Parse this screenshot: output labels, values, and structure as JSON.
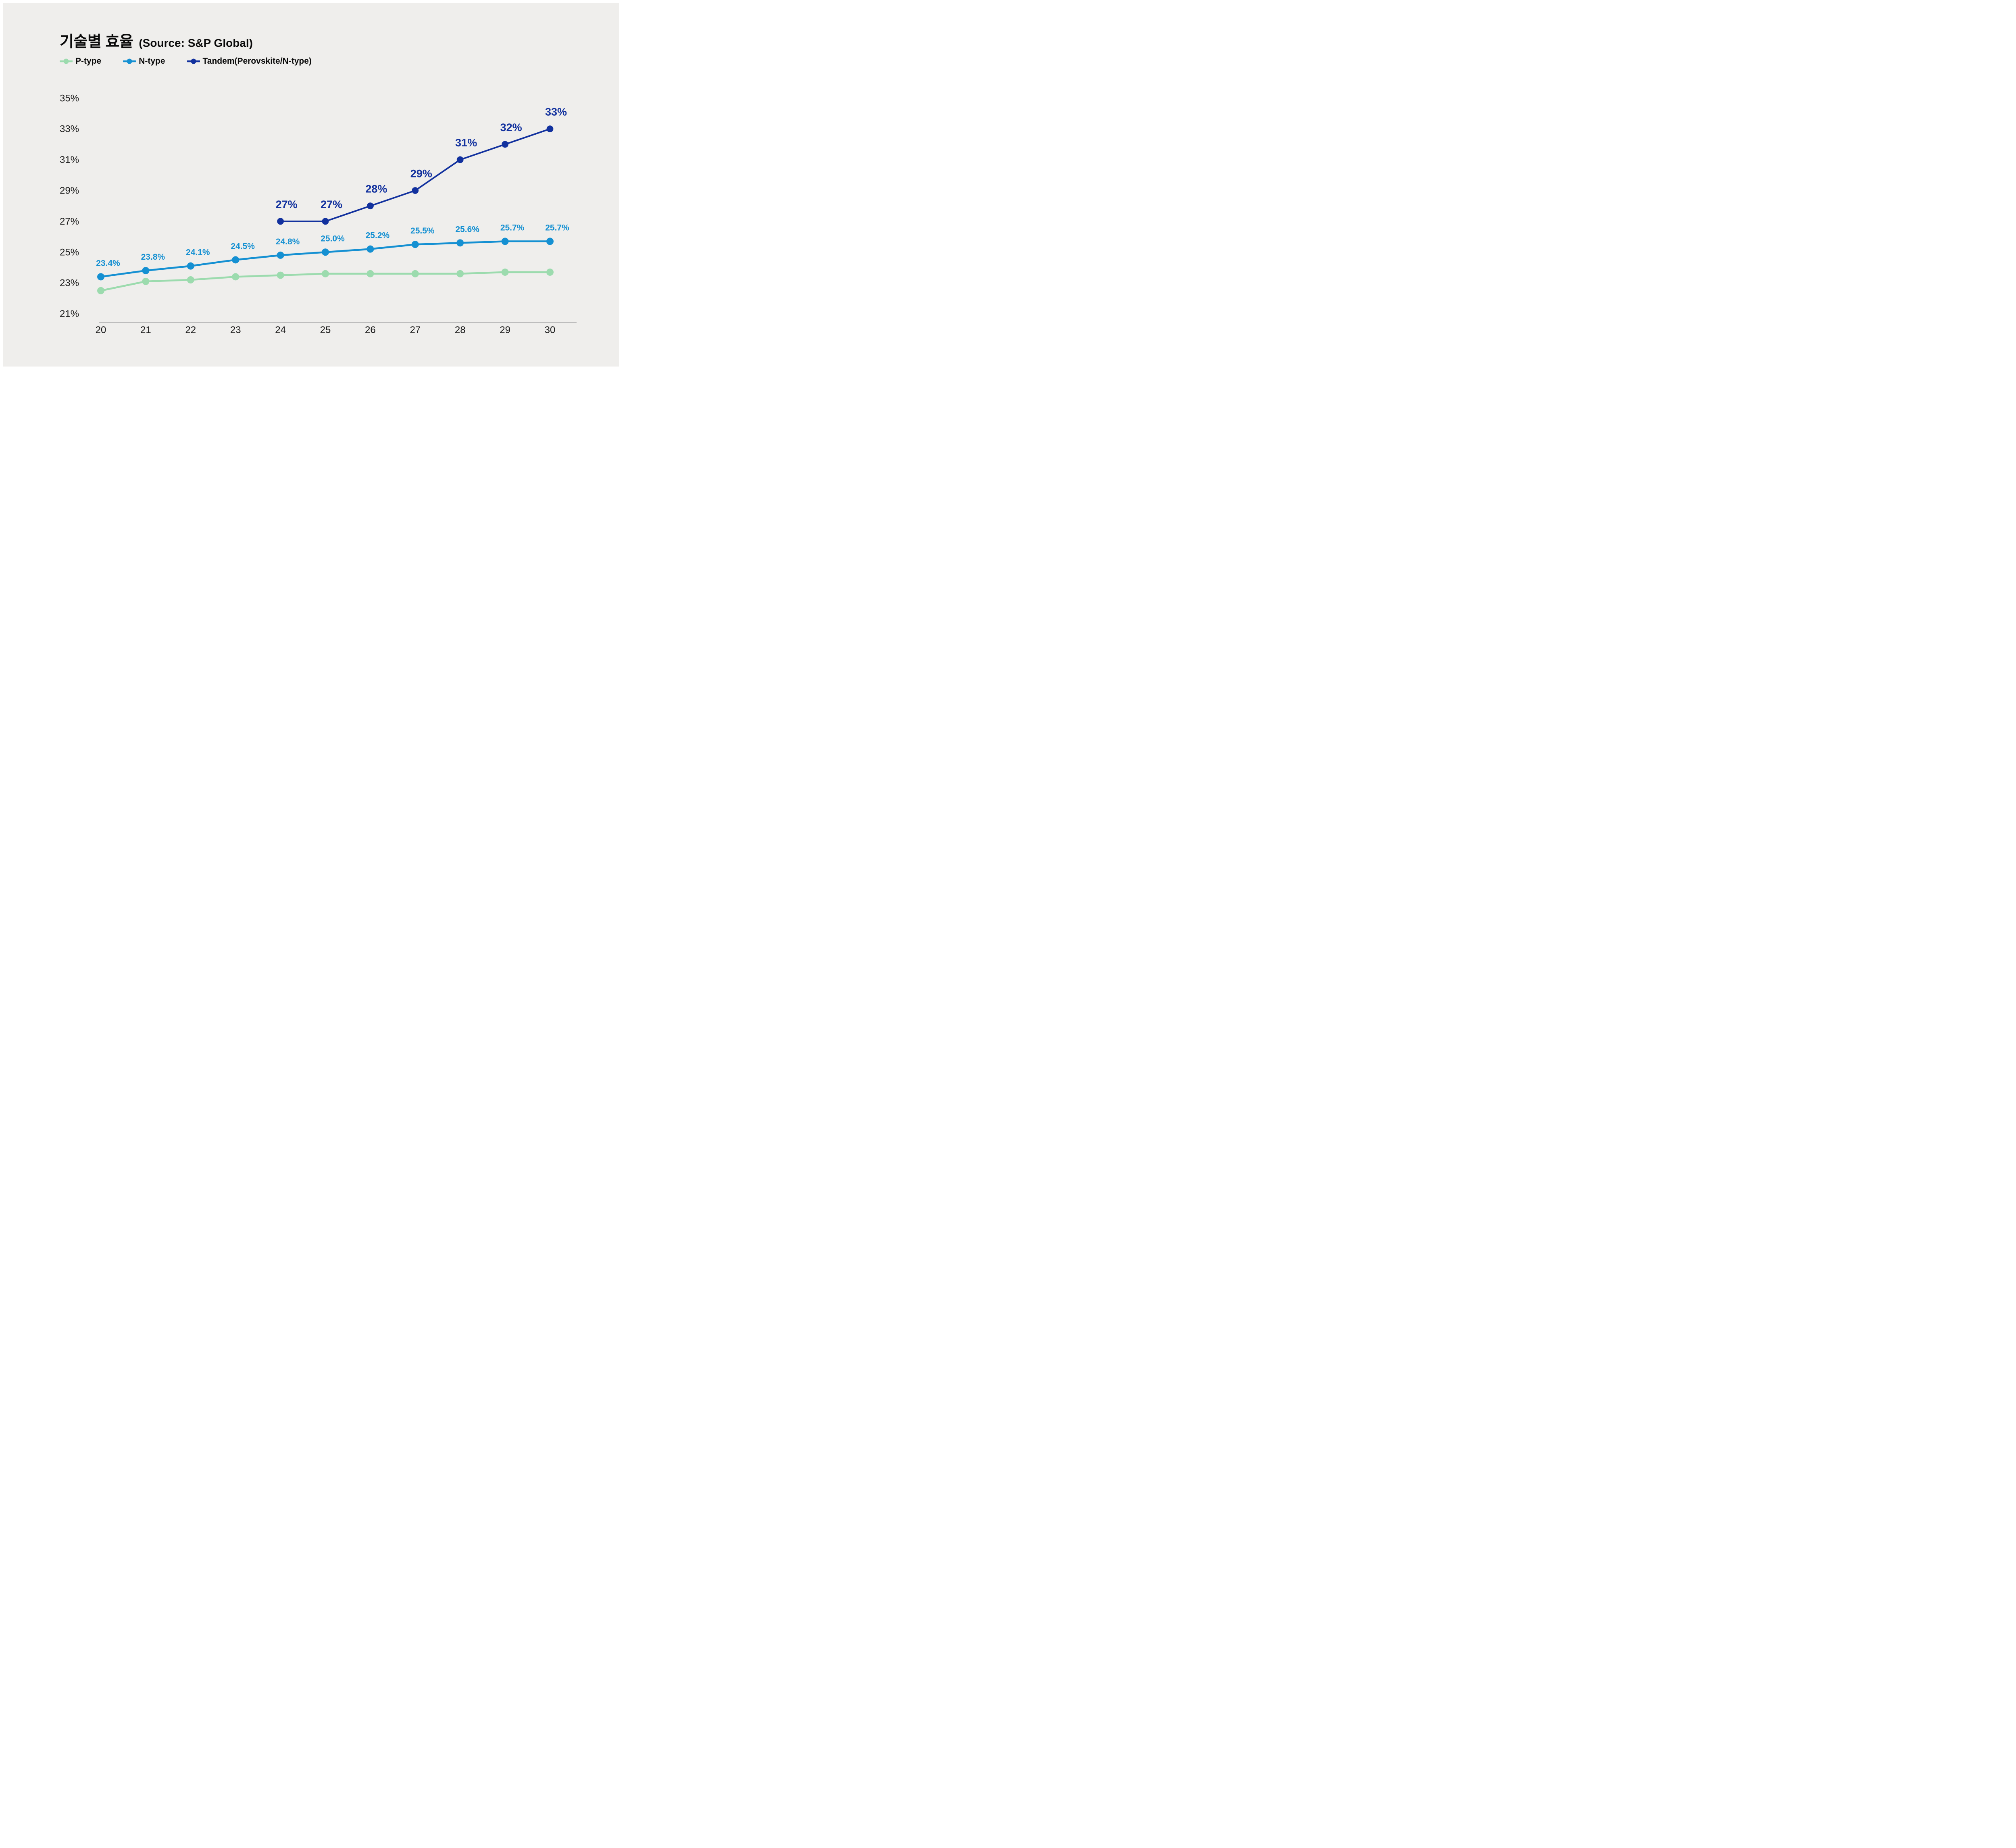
{
  "header": {
    "title": "기술별 효율",
    "source": "(Source: S&P Global)"
  },
  "legend": [
    {
      "label": "P-type",
      "color": "#9cdbae"
    },
    {
      "label": "N-type",
      "color": "#1590d2"
    },
    {
      "label": "Tandem(Perovskite/N-type)",
      "color": "#12319e"
    }
  ],
  "colors": {
    "panel_background": "#efeeec",
    "outer_border": "#ffffff",
    "axis_line": "#bdbdbd",
    "tick_text": "#1a1a1a",
    "p_type": "#9cdbae",
    "n_type": "#1590d2",
    "tandem": "#12319e"
  },
  "chart_data": {
    "type": "line",
    "title": "기술별 효율 (Source: S&P Global)",
    "xlabel": "",
    "ylabel": "",
    "x": [
      20,
      21,
      22,
      23,
      24,
      25,
      26,
      27,
      28,
      29,
      30
    ],
    "x_tick_labels": [
      "20",
      "21",
      "22",
      "23",
      "24",
      "25",
      "26",
      "27",
      "28",
      "29",
      "30"
    ],
    "ylim": [
      21,
      35
    ],
    "y_tick_labels": [
      "35%",
      "33%",
      "31%",
      "29%",
      "27%",
      "25%",
      "23%",
      "21%"
    ],
    "y_tick_values": [
      35,
      33,
      31,
      29,
      27,
      25,
      23,
      21
    ],
    "grid": "off",
    "legend_position": "top-left",
    "series": [
      {
        "name": "P-type",
        "color": "#9cdbae",
        "values": [
          22.5,
          23.1,
          23.2,
          23.4,
          23.5,
          23.6,
          23.6,
          23.6,
          23.6,
          23.7,
          23.7
        ],
        "point_labels": [
          null,
          null,
          null,
          null,
          null,
          null,
          null,
          null,
          null,
          null,
          null
        ]
      },
      {
        "name": "N-type",
        "color": "#1590d2",
        "values": [
          23.4,
          23.8,
          24.1,
          24.5,
          24.8,
          25.0,
          25.2,
          25.5,
          25.6,
          25.7,
          25.7
        ],
        "point_labels": [
          "23.4%",
          "23.8%",
          "24.1%",
          "24.5%",
          "24.8%",
          "25.0%",
          "25.2%",
          "25.5%",
          "25.6%",
          "25.7%",
          "25.7%"
        ]
      },
      {
        "name": "Tandem(Perovskite/N-type)",
        "color": "#12319e",
        "values": [
          null,
          null,
          null,
          null,
          27,
          27,
          28,
          29,
          31,
          32,
          33
        ],
        "point_labels": [
          null,
          null,
          null,
          null,
          "27%",
          "27%",
          "28%",
          "29%",
          "31%",
          "32%",
          "33%"
        ]
      }
    ]
  }
}
